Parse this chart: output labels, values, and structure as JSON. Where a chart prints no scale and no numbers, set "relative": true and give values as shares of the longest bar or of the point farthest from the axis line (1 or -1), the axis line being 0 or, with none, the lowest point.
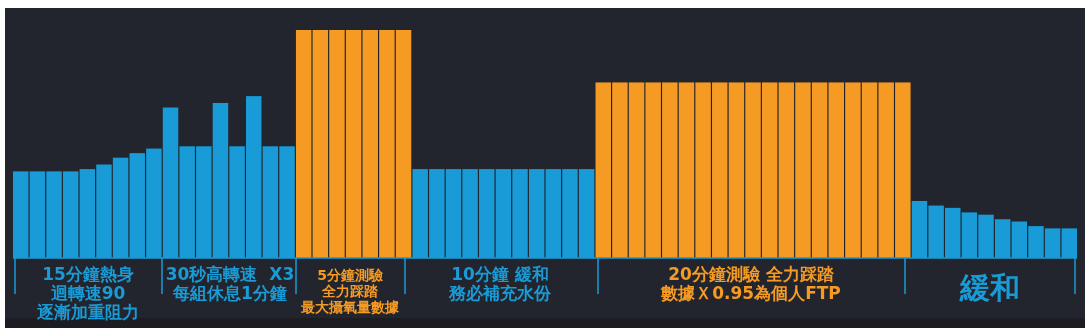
{
  "chart_data": {
    "type": "bar",
    "relative": true,
    "categories": [
      null,
      null,
      null,
      null,
      null,
      null,
      null,
      null,
      null,
      null,
      null,
      null,
      null,
      null,
      null,
      null,
      null,
      null,
      null,
      null,
      null,
      null,
      null,
      null,
      null,
      null,
      null,
      null,
      null,
      null,
      null,
      null,
      null,
      null,
      null,
      null,
      null,
      null,
      null,
      null,
      null,
      null,
      null,
      null,
      null,
      null,
      null,
      null,
      null,
      null,
      null,
      null,
      null,
      null,
      null,
      null,
      null,
      null,
      null,
      null,
      null,
      null,
      null,
      null
    ],
    "values": [
      0.38,
      0.38,
      0.38,
      0.38,
      0.39,
      0.41,
      0.44,
      0.46,
      0.48,
      0.66,
      0.49,
      0.49,
      0.68,
      0.49,
      0.71,
      0.49,
      0.49,
      1,
      1,
      1,
      1,
      1,
      1,
      1,
      0.39,
      0.39,
      0.39,
      0.39,
      0.39,
      0.39,
      0.39,
      0.39,
      0.39,
      0.39,
      0.39,
      0.77,
      0.77,
      0.77,
      0.77,
      0.77,
      0.77,
      0.77,
      0.77,
      0.77,
      0.77,
      0.77,
      0.77,
      0.77,
      0.77,
      0.77,
      0.77,
      0.77,
      0.77,
      0.77,
      0.25,
      0.23,
      0.22,
      0.2,
      0.19,
      0.17,
      0.16,
      0.14,
      0.13,
      0.13
    ],
    "colors": [
      "#189bd7",
      "#189bd7",
      "#189bd7",
      "#189bd7",
      "#189bd7",
      "#189bd7",
      "#189bd7",
      "#189bd7",
      "#189bd7",
      "#189bd7",
      "#189bd7",
      "#189bd7",
      "#189bd7",
      "#189bd7",
      "#189bd7",
      "#189bd7",
      "#189bd7",
      "#f59a23",
      "#f59a23",
      "#f59a23",
      "#f59a23",
      "#f59a23",
      "#f59a23",
      "#f59a23",
      "#189bd7",
      "#189bd7",
      "#189bd7",
      "#189bd7",
      "#189bd7",
      "#189bd7",
      "#189bd7",
      "#189bd7",
      "#189bd7",
      "#189bd7",
      "#189bd7",
      "#f59a23",
      "#f59a23",
      "#f59a23",
      "#f59a23",
      "#f59a23",
      "#f59a23",
      "#f59a23",
      "#f59a23",
      "#f59a23",
      "#f59a23",
      "#f59a23",
      "#f59a23",
      "#f59a23",
      "#f59a23",
      "#f59a23",
      "#f59a23",
      "#f59a23",
      "#f59a23",
      "#f59a23",
      "#189bd7",
      "#189bd7",
      "#189bd7",
      "#189bd7",
      "#189bd7",
      "#189bd7",
      "#189bd7",
      "#189bd7",
      "#189bd7",
      "#189bd7"
    ],
    "annotations": [
      "15分鐘熱身迴轉速90逐漸加重阻力",
      "30秒高轉速  X3每組休息1分鐘",
      "5分鐘測驗全力踩踏最大攝氧量數據",
      "10分鐘 緩和務必補充水份",
      "20分鐘測驗 全力踩踏數據Ｘ0.95為個人FTP",
      "緩和"
    ]
  }
}
